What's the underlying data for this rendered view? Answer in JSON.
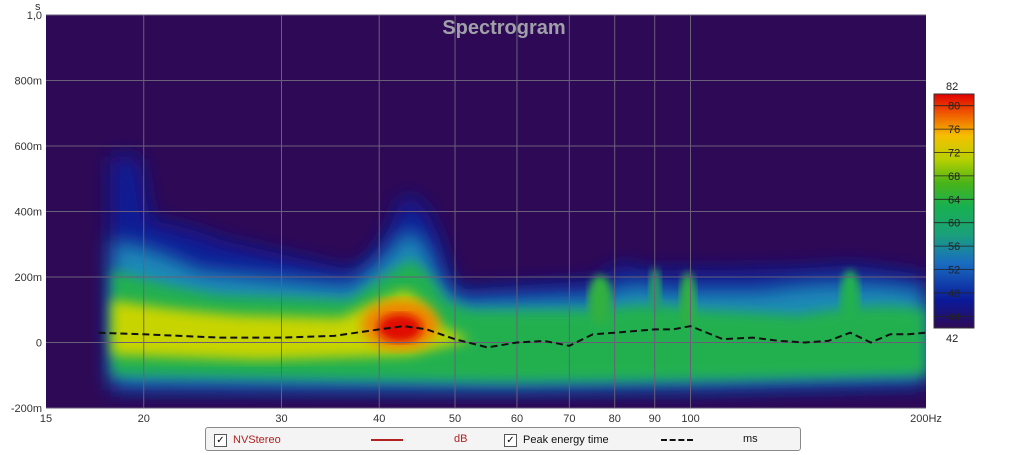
{
  "chart_data": {
    "type": "heatmap",
    "title": "Spectrogram",
    "xlabel": "",
    "ylabel": "s",
    "x_scale": "log",
    "xlim": [
      15,
      200
    ],
    "ylim": [
      -0.2,
      1.0
    ],
    "x_ticks": [
      {
        "value": 15,
        "label": "15"
      },
      {
        "value": 20,
        "label": "20"
      },
      {
        "value": 30,
        "label": "30"
      },
      {
        "value": 40,
        "label": "40"
      },
      {
        "value": 50,
        "label": "50"
      },
      {
        "value": 60,
        "label": "60"
      },
      {
        "value": 70,
        "label": "70"
      },
      {
        "value": 80,
        "label": "80"
      },
      {
        "value": 90,
        "label": "90"
      },
      {
        "value": 100,
        "label": "100"
      },
      {
        "value": 200,
        "label": "200Hz"
      }
    ],
    "y_ticks": [
      {
        "value": 1.0,
        "label": "1,0"
      },
      {
        "value": 0.8,
        "label": "800m"
      },
      {
        "value": 0.6,
        "label": "600m"
      },
      {
        "value": 0.4,
        "label": "400m"
      },
      {
        "value": 0.2,
        "label": "200m"
      },
      {
        "value": 0.0,
        "label": "0"
      },
      {
        "value": -0.2,
        "label": "-200m"
      }
    ],
    "colorbar": {
      "min": 42,
      "max": 82,
      "ticks": [
        44,
        48,
        52,
        56,
        60,
        64,
        68,
        72,
        76,
        80
      ],
      "min_label": "42",
      "max_label": "82"
    },
    "grid": true,
    "peak_energy_time": {
      "freq_hz": [
        17.5,
        20,
        25,
        30,
        35,
        40,
        43,
        46,
        50,
        55,
        60,
        65,
        70,
        75,
        80,
        85,
        90,
        95,
        100,
        110,
        120,
        130,
        140,
        150,
        160,
        170,
        180,
        190,
        200
      ],
      "time_s": [
        0.03,
        0.025,
        0.015,
        0.015,
        0.02,
        0.04,
        0.05,
        0.04,
        0.01,
        -0.015,
        0.0,
        0.005,
        -0.01,
        0.025,
        0.03,
        0.035,
        0.04,
        0.04,
        0.05,
        0.01,
        0.015,
        0.005,
        0.0,
        0.005,
        0.03,
        0.0,
        0.025,
        0.025,
        0.03
      ]
    }
  },
  "legend": {
    "items": [
      {
        "checked": true,
        "name": "NVStereo",
        "unit": "dB",
        "line_color": "#b22222"
      },
      {
        "checked": true,
        "name": "Peak energy time",
        "unit": "ms",
        "line_color": "#111111"
      }
    ]
  },
  "colors": {
    "background": "#2e0a56",
    "grid": "#6a5f7a",
    "text": "#333333"
  }
}
